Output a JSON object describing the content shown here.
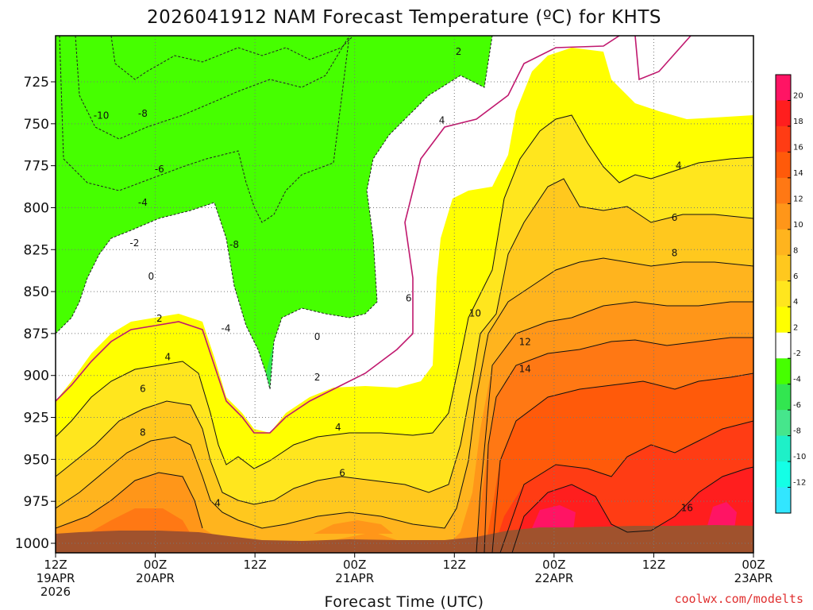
{
  "title": "2026041912 NAM Forecast Temperature (ºC) for KHTS",
  "credit": "coolwx.com/modelts",
  "chart_data": {
    "type": "contour",
    "title": "2026041912 NAM Forecast Temperature (ºC) for KHTS",
    "xlabel": "Forecast Time (UTC)",
    "ylabel": "",
    "y_axis": {
      "scale": "pressure (hPa), decreasing upward",
      "range": [
        1000,
        700
      ],
      "ticks": [
        725,
        750,
        775,
        800,
        825,
        850,
        875,
        900,
        925,
        950,
        975,
        1000
      ]
    },
    "x_axis": {
      "range_hours": [
        0,
        84
      ],
      "ticks": [
        {
          "hour": 0,
          "lines": [
            "12Z",
            "19APR",
            "2026"
          ]
        },
        {
          "hour": 12,
          "lines": [
            "00Z",
            "20APR"
          ]
        },
        {
          "hour": 24,
          "lines": [
            "12Z"
          ]
        },
        {
          "hour": 36,
          "lines": [
            "00Z",
            "21APR"
          ]
        },
        {
          "hour": 48,
          "lines": [
            "12Z"
          ]
        },
        {
          "hour": 60,
          "lines": [
            "00Z",
            "22APR"
          ]
        },
        {
          "hour": 72,
          "lines": [
            "12Z"
          ]
        },
        {
          "hour": 84,
          "lines": [
            "00Z",
            "23APR"
          ]
        }
      ]
    },
    "grid": true,
    "colorbar": {
      "placement": "right",
      "levels": [
        -14,
        -12,
        -10,
        -8,
        -6,
        -4,
        -2,
        2,
        4,
        6,
        8,
        10,
        12,
        14,
        16,
        18,
        20,
        22
      ],
      "tick_labels": [
        "20",
        "18",
        "16",
        "14",
        "12",
        "10",
        "8",
        "6",
        "4",
        "2",
        "-2",
        "-4",
        "-6",
        "-8",
        "-10",
        "-12"
      ],
      "colors_top_to_bottom": [
        "#ff1464",
        "#ff1e1e",
        "#ff3c14",
        "#ff5a0a",
        "#ff7814",
        "#ff9619",
        "#ffb41e",
        "#ffc81e",
        "#ffe61e",
        "#ffff00",
        "#ffffff",
        "#46ff00",
        "#32e650",
        "#46e68c",
        "#1ef0c8",
        "#14ffe6",
        "#32e6ff"
      ]
    },
    "contour_labels": [
      {
        "value": "-10",
        "hour": 5.5,
        "p": 745
      },
      {
        "value": "-8",
        "hour": 10.5,
        "p": 744
      },
      {
        "value": "-6",
        "hour": 12.5,
        "p": 777
      },
      {
        "value": "-4",
        "hour": 10.5,
        "p": 797
      },
      {
        "value": "-2",
        "hour": 9.5,
        "p": 821
      },
      {
        "value": "-8",
        "hour": 21.5,
        "p": 822
      },
      {
        "value": "-4",
        "hour": 20.5,
        "p": 872
      },
      {
        "value": "0",
        "hour": 11.5,
        "p": 841
      },
      {
        "value": "2",
        "hour": 12.5,
        "p": 866
      },
      {
        "value": "4",
        "hour": 13.5,
        "p": 889
      },
      {
        "value": "6",
        "hour": 10.5,
        "p": 908
      },
      {
        "value": "8",
        "hour": 10.5,
        "p": 934
      },
      {
        "value": "0",
        "hour": 31.5,
        "p": 877
      },
      {
        "value": "2",
        "hour": 31.5,
        "p": 901
      },
      {
        "value": "4",
        "hour": 34.0,
        "p": 931
      },
      {
        "value": "6",
        "hour": 34.5,
        "p": 958
      },
      {
        "value": "4",
        "hour": 19.5,
        "p": 976
      },
      {
        "value": "2",
        "hour": 48.5,
        "p": 707
      },
      {
        "value": "4",
        "hour": 46.5,
        "p": 748
      },
      {
        "value": "6",
        "hour": 42.5,
        "p": 854
      },
      {
        "value": "10",
        "hour": 50.5,
        "p": 863
      },
      {
        "value": "12",
        "hour": 56.5,
        "p": 880
      },
      {
        "value": "14",
        "hour": 56.5,
        "p": 896
      },
      {
        "value": "4",
        "hour": 75.0,
        "p": 775
      },
      {
        "value": "6",
        "hour": 74.5,
        "p": 806
      },
      {
        "value": "8",
        "hour": 74.5,
        "p": 827
      },
      {
        "value": "16",
        "hour": 76.0,
        "p": 979
      }
    ],
    "terrain_color": "#a0522d"
  }
}
